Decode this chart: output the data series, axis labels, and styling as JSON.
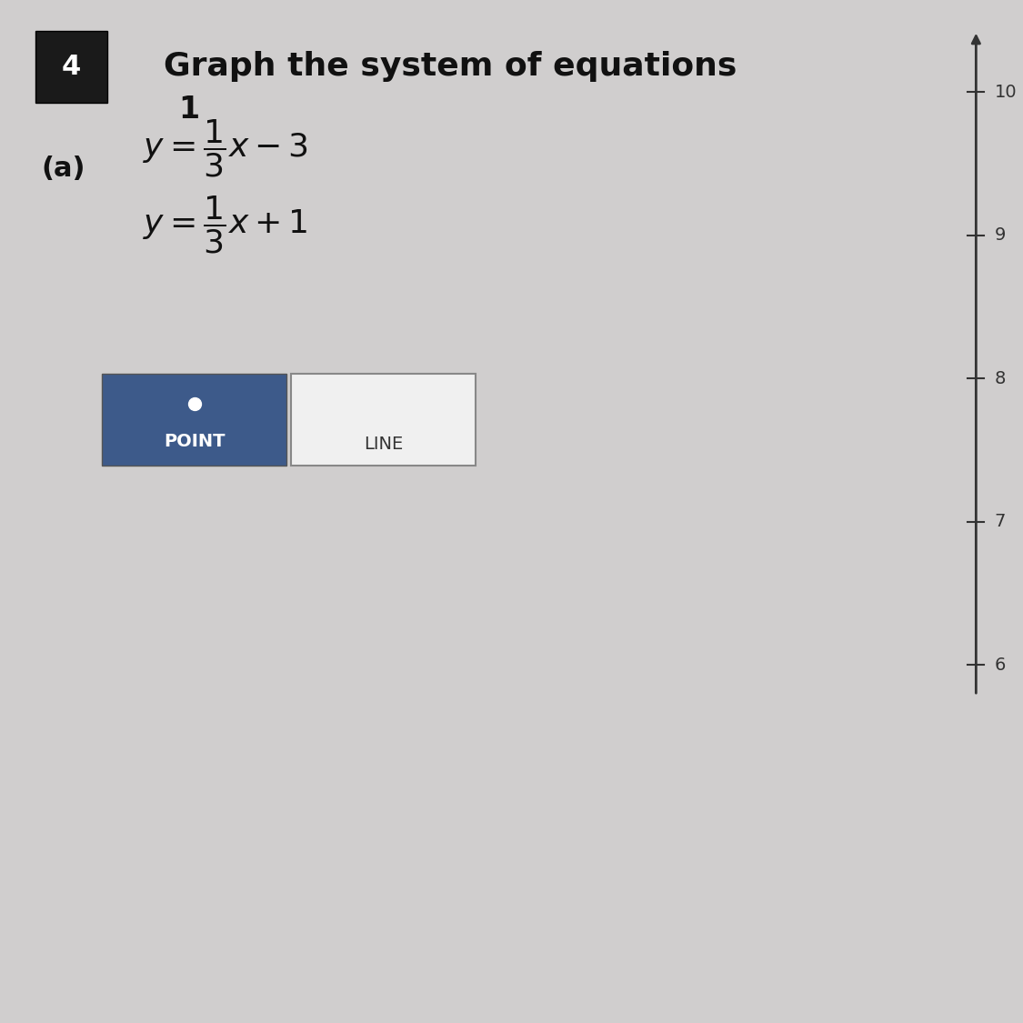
{
  "problem_number": "4",
  "title": "Graph the system of equations",
  "part_label": "(a)",
  "eq1": "y = \\frac{1}{3}x - 3",
  "eq2": "y = \\frac{1}{3}x + 1",
  "eq1_display_line1": "1",
  "eq1_display_line2": "y = —x − 3",
  "eq1_display_line3": "3",
  "eq2_display_line1": "1",
  "eq2_display_line2": "y = —x + 1",
  "eq2_display_line3": "3",
  "point_btn_color": "#3d5a8a",
  "point_btn_text": "POINT",
  "line_btn_text": "LINE",
  "background_color": "#d0cece",
  "axis_tick_values": [
    6,
    7,
    8,
    9,
    10
  ],
  "axis_color": "#333333",
  "number_box_color": "#1a1a1a",
  "number_box_text": "4",
  "number_box_text_color": "#ffffff"
}
